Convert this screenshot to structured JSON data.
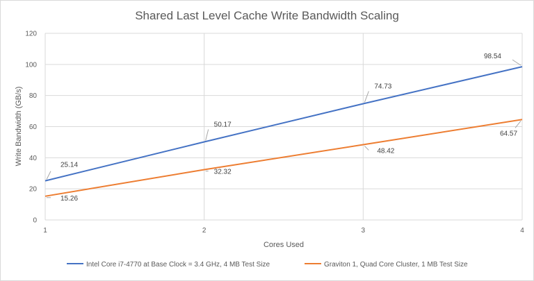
{
  "chart_data": {
    "type": "line",
    "title": "Shared Last Level Cache Write Bandwidth Scaling",
    "xlabel": "Cores Used",
    "ylabel": "Write Bandwidth (GB/s)",
    "x": [
      1,
      2,
      3,
      4
    ],
    "xlim": [
      1,
      4
    ],
    "ylim": [
      0,
      120
    ],
    "yticks": [
      0,
      20,
      40,
      60,
      80,
      100,
      120
    ],
    "xticks": [
      1,
      2,
      3,
      4
    ],
    "grid": true,
    "legend_position": "bottom",
    "series": [
      {
        "name": "Intel Core i7-4770 at Base Clock = 3.4 GHz, 4 MB Test Size",
        "values": [
          25.14,
          50.17,
          74.73,
          98.54
        ],
        "labels": [
          "25.14",
          "50.17",
          "74.73",
          "98.54"
        ],
        "color": "#4472c4"
      },
      {
        "name": "Graviton 1, Quad Core Cluster, 1 MB Test Size",
        "values": [
          15.26,
          32.32,
          48.42,
          64.57
        ],
        "labels": [
          "15.26",
          "32.32",
          "48.42",
          "64.57"
        ],
        "color": "#ed7d31"
      }
    ]
  }
}
